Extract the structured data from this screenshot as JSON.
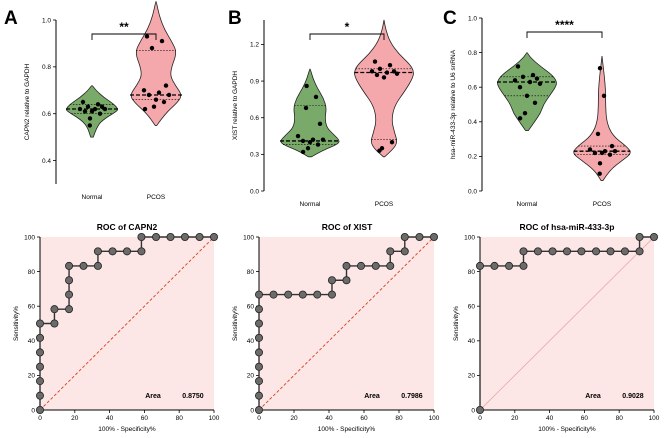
{
  "chart_data": [
    {
      "type": "violin",
      "panel_label": "A",
      "title": "",
      "ylabel": "CAPN2 relative to GAPDH",
      "ylim": [
        0.3,
        1.0
      ],
      "yticks": [
        0.4,
        0.6,
        0.8,
        1.0
      ],
      "ytick_labels": [
        "0.4",
        "0.6",
        "0.8",
        "1.0"
      ],
      "categories": [
        "Normal",
        "PCOS"
      ],
      "significance": "**",
      "colors": {
        "Normal": "#7aaa6a",
        "PCOS": "#f4a8ac"
      },
      "series": [
        {
          "name": "Normal",
          "values": [
            0.65,
            0.64,
            0.63,
            0.63,
            0.62,
            0.62,
            0.62,
            0.61,
            0.61,
            0.6,
            0.58,
            0.55
          ],
          "median": 0.62,
          "quartiles": [
            0.6,
            0.64
          ],
          "range": [
            0.5,
            0.72
          ],
          "density": [
            [
              0.5,
              0.05
            ],
            [
              0.55,
              0.2
            ],
            [
              0.58,
              0.5
            ],
            [
              0.61,
              0.95
            ],
            [
              0.62,
              1.0
            ],
            [
              0.64,
              0.85
            ],
            [
              0.67,
              0.45
            ],
            [
              0.7,
              0.15
            ],
            [
              0.72,
              0.02
            ]
          ]
        },
        {
          "name": "PCOS",
          "values": [
            0.93,
            0.91,
            0.88,
            0.72,
            0.7,
            0.69,
            0.68,
            0.68,
            0.66,
            0.65,
            0.63,
            0.62
          ],
          "median": 0.68,
          "quartiles": [
            0.66,
            0.87
          ],
          "range": [
            0.55,
            1.08
          ],
          "density": [
            [
              0.55,
              0.03
            ],
            [
              0.6,
              0.35
            ],
            [
              0.65,
              0.85
            ],
            [
              0.68,
              1.0
            ],
            [
              0.72,
              0.75
            ],
            [
              0.76,
              0.55
            ],
            [
              0.8,
              0.6
            ],
            [
              0.86,
              0.8
            ],
            [
              0.9,
              0.65
            ],
            [
              0.96,
              0.32
            ],
            [
              1.02,
              0.12
            ],
            [
              1.08,
              0.01
            ]
          ]
        }
      ]
    },
    {
      "type": "violin",
      "panel_label": "B",
      "title": "",
      "ylabel": "XIST relative to GAPDH",
      "ylim": [
        0.0,
        1.4
      ],
      "yticks": [
        0.0,
        0.3,
        0.6,
        0.9,
        1.2
      ],
      "ytick_labels": [
        "0.0",
        "0.3",
        "0.6",
        "0.9",
        "1.2"
      ],
      "categories": [
        "Normal",
        "PCOS"
      ],
      "significance": "*",
      "colors": {
        "Normal": "#7aaa6a",
        "PCOS": "#f4a8ac"
      },
      "series": [
        {
          "name": "Normal",
          "values": [
            0.86,
            0.77,
            0.68,
            0.55,
            0.45,
            0.42,
            0.42,
            0.41,
            0.4,
            0.38,
            0.35,
            0.32
          ],
          "median": 0.41,
          "quartiles": [
            0.38,
            0.7
          ],
          "range": [
            0.28,
            1.0
          ],
          "density": [
            [
              0.28,
              0.05
            ],
            [
              0.33,
              0.4
            ],
            [
              0.38,
              0.9
            ],
            [
              0.41,
              1.0
            ],
            [
              0.46,
              0.8
            ],
            [
              0.52,
              0.55
            ],
            [
              0.6,
              0.5
            ],
            [
              0.68,
              0.55
            ],
            [
              0.76,
              0.45
            ],
            [
              0.84,
              0.25
            ],
            [
              0.92,
              0.1
            ],
            [
              1.0,
              0.01
            ]
          ]
        },
        {
          "name": "PCOS",
          "values": [
            1.06,
            1.03,
            1.0,
            0.98,
            0.98,
            0.97,
            0.96,
            0.95,
            0.93,
            0.4,
            0.35,
            0.33
          ],
          "median": 0.97,
          "quartiles": [
            0.42,
            1.0
          ],
          "range": [
            0.28,
            1.4
          ],
          "density": [
            [
              0.28,
              0.02
            ],
            [
              0.34,
              0.3
            ],
            [
              0.4,
              0.45
            ],
            [
              0.48,
              0.35
            ],
            [
              0.58,
              0.25
            ],
            [
              0.7,
              0.35
            ],
            [
              0.82,
              0.7
            ],
            [
              0.92,
              0.95
            ],
            [
              0.98,
              1.0
            ],
            [
              1.04,
              0.85
            ],
            [
              1.12,
              0.5
            ],
            [
              1.22,
              0.2
            ],
            [
              1.32,
              0.06
            ],
            [
              1.4,
              0.0
            ]
          ]
        }
      ]
    },
    {
      "type": "violin",
      "panel_label": "C",
      "title": "",
      "ylabel": "hsa-miR-433-3p relative to U6 snRNA",
      "ylim": [
        0.0,
        1.0
      ],
      "yticks": [
        0.0,
        0.2,
        0.4,
        0.6,
        0.8,
        1.0
      ],
      "ytick_labels": [
        "0.0",
        "0.2",
        "0.4",
        "0.6",
        "0.8",
        "1.0"
      ],
      "categories": [
        "Normal",
        "PCOS"
      ],
      "significance": "****",
      "colors": {
        "Normal": "#7aaa6a",
        "PCOS": "#f4a8ac"
      },
      "series": [
        {
          "name": "Normal",
          "values": [
            0.72,
            0.67,
            0.66,
            0.65,
            0.64,
            0.63,
            0.62,
            0.6,
            0.55,
            0.51,
            0.45,
            0.42
          ],
          "median": 0.63,
          "quartiles": [
            0.55,
            0.66
          ],
          "range": [
            0.35,
            0.8
          ],
          "density": [
            [
              0.35,
              0.05
            ],
            [
              0.4,
              0.25
            ],
            [
              0.45,
              0.45
            ],
            [
              0.5,
              0.55
            ],
            [
              0.55,
              0.75
            ],
            [
              0.6,
              0.95
            ],
            [
              0.63,
              1.0
            ],
            [
              0.67,
              0.85
            ],
            [
              0.72,
              0.45
            ],
            [
              0.77,
              0.12
            ],
            [
              0.8,
              0.01
            ]
          ]
        },
        {
          "name": "PCOS",
          "values": [
            0.71,
            0.55,
            0.33,
            0.26,
            0.24,
            0.23,
            0.23,
            0.22,
            0.22,
            0.21,
            0.16,
            0.1
          ],
          "median": 0.23,
          "quartiles": [
            0.21,
            0.26
          ],
          "range": [
            0.06,
            0.78
          ],
          "density": [
            [
              0.06,
              0.03
            ],
            [
              0.12,
              0.25
            ],
            [
              0.18,
              0.7
            ],
            [
              0.22,
              1.0
            ],
            [
              0.26,
              0.8
            ],
            [
              0.32,
              0.35
            ],
            [
              0.4,
              0.15
            ],
            [
              0.5,
              0.12
            ],
            [
              0.58,
              0.12
            ],
            [
              0.66,
              0.08
            ],
            [
              0.72,
              0.04
            ],
            [
              0.78,
              0.0
            ]
          ]
        }
      ]
    },
    {
      "type": "roc",
      "title": "ROC of CAPN2",
      "xlabel": "100% - Specificity%",
      "ylabel": "Sensitivity%",
      "xlim": [
        0,
        100
      ],
      "ylim": [
        0,
        100
      ],
      "ticks": [
        0,
        20,
        40,
        60,
        80,
        100
      ],
      "tick_labels": [
        "0",
        "20",
        "40",
        "60",
        "80",
        "100"
      ],
      "area_label": "Area",
      "area_value": "0.8750",
      "points": [
        [
          0,
          0
        ],
        [
          0,
          8.3
        ],
        [
          0,
          16.7
        ],
        [
          0,
          25
        ],
        [
          0,
          33.3
        ],
        [
          0,
          41.7
        ],
        [
          0,
          50
        ],
        [
          8.3,
          50
        ],
        [
          8.3,
          58.3
        ],
        [
          16.7,
          58.3
        ],
        [
          16.7,
          66.7
        ],
        [
          16.7,
          75
        ],
        [
          16.7,
          83.3
        ],
        [
          25,
          83.3
        ],
        [
          33.3,
          83.3
        ],
        [
          33.3,
          91.7
        ],
        [
          41.7,
          91.7
        ],
        [
          50,
          91.7
        ],
        [
          58.3,
          91.7
        ],
        [
          58.3,
          100
        ],
        [
          66.7,
          100
        ],
        [
          75,
          100
        ],
        [
          83.3,
          100
        ],
        [
          91.7,
          100
        ],
        [
          100,
          100
        ]
      ]
    },
    {
      "type": "roc",
      "title": "ROC of XIST",
      "xlabel": "100% - Specificity%",
      "ylabel": "Sensitivity%",
      "xlim": [
        0,
        100
      ],
      "ylim": [
        0,
        100
      ],
      "ticks": [
        0,
        20,
        40,
        60,
        80,
        100
      ],
      "tick_labels": [
        "0",
        "20",
        "40",
        "60",
        "80",
        "100"
      ],
      "area_label": "Area",
      "area_value": "0.7986",
      "points": [
        [
          0,
          0
        ],
        [
          0,
          8.3
        ],
        [
          0,
          16.7
        ],
        [
          0,
          25
        ],
        [
          0,
          33.3
        ],
        [
          0,
          41.7
        ],
        [
          0,
          50
        ],
        [
          0,
          58.3
        ],
        [
          0,
          66.7
        ],
        [
          8.3,
          66.7
        ],
        [
          16.7,
          66.7
        ],
        [
          25,
          66.7
        ],
        [
          33.3,
          66.7
        ],
        [
          41.7,
          66.7
        ],
        [
          41.7,
          75
        ],
        [
          50,
          75
        ],
        [
          50,
          83.3
        ],
        [
          58.3,
          83.3
        ],
        [
          66.7,
          83.3
        ],
        [
          75,
          83.3
        ],
        [
          75,
          91.7
        ],
        [
          83.3,
          91.7
        ],
        [
          83.3,
          100
        ],
        [
          91.7,
          100
        ],
        [
          100,
          100
        ]
      ]
    },
    {
      "type": "roc",
      "title": "ROC of hsa-miR-433-3p",
      "xlabel": "100% - Specificity%",
      "ylabel": "Sensitivity%",
      "xlim": [
        0,
        100
      ],
      "ylim": [
        0,
        100
      ],
      "ticks": [
        0,
        20,
        40,
        60,
        80,
        100
      ],
      "tick_labels": [
        "0",
        "20",
        "40",
        "60",
        "80",
        "100"
      ],
      "area_label": "Area",
      "area_value": "0.9028",
      "points": [
        [
          0,
          0
        ],
        [
          0,
          83.3
        ],
        [
          8.3,
          83.3
        ],
        [
          16.7,
          83.3
        ],
        [
          25,
          83.3
        ],
        [
          25,
          91.7
        ],
        [
          33.3,
          91.7
        ],
        [
          41.7,
          91.7
        ],
        [
          50,
          91.7
        ],
        [
          58.3,
          91.7
        ],
        [
          66.7,
          91.7
        ],
        [
          75,
          91.7
        ],
        [
          83.3,
          91.7
        ],
        [
          91.7,
          91.7
        ],
        [
          91.7,
          100
        ],
        [
          100,
          100
        ]
      ]
    }
  ]
}
